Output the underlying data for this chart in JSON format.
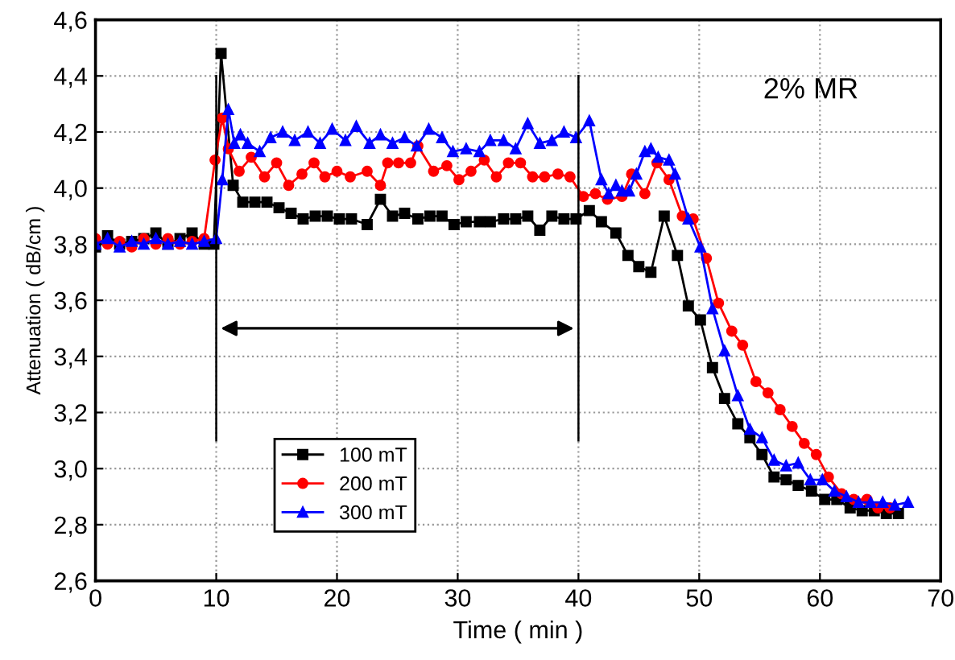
{
  "chart_data": {
    "type": "line",
    "xlabel": "Time ( min )",
    "ylabel": "Attenuation ( dB/cm )",
    "xlim": [
      0,
      70
    ],
    "xticks": [
      0,
      10,
      20,
      30,
      40,
      50,
      60,
      70
    ],
    "ylim": [
      2.6,
      4.6
    ],
    "yticks": [
      {
        "value": 2.6,
        "label": "2,6"
      },
      {
        "value": 2.8,
        "label": "2,8"
      },
      {
        "value": 3.0,
        "label": "3,0"
      },
      {
        "value": 3.2,
        "label": "3,2"
      },
      {
        "value": 3.4,
        "label": "3,4"
      },
      {
        "value": 3.6,
        "label": "3,6"
      },
      {
        "value": 3.8,
        "label": "3,8"
      },
      {
        "value": 4.0,
        "label": "4,0"
      },
      {
        "value": 4.2,
        "label": "4,2"
      },
      {
        "value": 4.4,
        "label": "4,4"
      },
      {
        "value": 4.6,
        "label": "4,6"
      }
    ],
    "grid": true,
    "legend": "bottom left",
    "line_style": "solid",
    "annotations": [
      "2% MR"
    ],
    "ref_lines": [
      {
        "axis": "x",
        "value": 10,
        "color": "#000000"
      },
      {
        "axis": "x",
        "value": 40,
        "color": "#000000"
      }
    ],
    "series": [
      {
        "name": "100 mT",
        "color": "#000000",
        "marker": "square",
        "x": [
          0,
          1,
          2,
          3,
          4,
          5,
          6,
          7,
          8,
          9,
          9.8,
          10.4,
          11.4,
          12.2,
          13.2,
          14.2,
          15.2,
          16.2,
          17.2,
          18.2,
          19.2,
          20.2,
          21.2,
          22.5,
          23.6,
          24.6,
          25.6,
          26.7,
          27.7,
          28.7,
          29.7,
          30.7,
          31.8,
          32.7,
          33.8,
          34.8,
          35.8,
          36.8,
          37.8,
          38.8,
          39.8,
          40.9,
          41.9,
          43.1,
          44.1,
          45.0,
          46.0,
          47.1,
          48.2,
          49.1,
          50.1,
          51.1,
          52.1,
          53.2,
          54.2,
          55.2,
          56.2,
          57.2,
          58.2,
          59.3,
          60.4,
          61.4,
          62.5,
          63.5,
          64.5,
          65.5,
          66.5
        ],
        "values": [
          3.79,
          3.83,
          3.8,
          3.81,
          3.82,
          3.84,
          3.8,
          3.82,
          3.84,
          3.8,
          3.8,
          4.48,
          4.01,
          3.95,
          3.95,
          3.95,
          3.93,
          3.91,
          3.89,
          3.9,
          3.9,
          3.89,
          3.89,
          3.87,
          3.96,
          3.9,
          3.91,
          3.89,
          3.9,
          3.9,
          3.87,
          3.88,
          3.88,
          3.88,
          3.89,
          3.89,
          3.9,
          3.85,
          3.9,
          3.89,
          3.89,
          3.92,
          3.88,
          3.84,
          3.76,
          3.72,
          3.7,
          3.9,
          3.76,
          3.58,
          3.53,
          3.36,
          3.25,
          3.16,
          3.11,
          3.05,
          2.97,
          2.96,
          2.94,
          2.92,
          2.89,
          2.89,
          2.86,
          2.85,
          2.85,
          2.84,
          2.84
        ]
      },
      {
        "name": "200 mT",
        "color": "#ff0000",
        "marker": "circle",
        "x": [
          0,
          1,
          2,
          3,
          4,
          5,
          6,
          7,
          8,
          9,
          9.9,
          10.5,
          11.0,
          11.9,
          12.9,
          14.0,
          15.0,
          16.0,
          17.1,
          18.1,
          19.0,
          20.0,
          21.1,
          22.5,
          23.6,
          24.2,
          25.1,
          26.1,
          26.7,
          28.0,
          29.1,
          30.1,
          31.1,
          32.2,
          33.2,
          34.2,
          35.2,
          36.2,
          37.2,
          38.3,
          39.3,
          40.4,
          41.4,
          42.4,
          43.6,
          44.4,
          45.5,
          46.5,
          47.5,
          48.6,
          49.5,
          50.6,
          51.6,
          52.7,
          53.6,
          54.7,
          55.7,
          56.7,
          57.7,
          58.7,
          59.7,
          60.7,
          61.8,
          62.8,
          63.9,
          64.8,
          65.8
        ],
        "values": [
          3.82,
          3.8,
          3.81,
          3.79,
          3.82,
          3.8,
          3.82,
          3.8,
          3.81,
          3.82,
          4.1,
          4.25,
          4.14,
          4.06,
          4.11,
          4.04,
          4.09,
          4.01,
          4.05,
          4.09,
          4.04,
          4.06,
          4.04,
          4.06,
          4.01,
          4.09,
          4.09,
          4.09,
          4.15,
          4.06,
          4.08,
          4.03,
          4.06,
          4.1,
          4.04,
          4.09,
          4.09,
          4.04,
          4.04,
          4.05,
          4.04,
          3.97,
          3.98,
          3.96,
          3.97,
          4.05,
          3.98,
          4.09,
          4.03,
          3.9,
          3.89,
          3.75,
          3.59,
          3.49,
          3.44,
          3.31,
          3.27,
          3.21,
          3.15,
          3.09,
          3.05,
          2.97,
          2.91,
          2.89,
          2.89,
          2.86,
          2.86
        ]
      },
      {
        "name": "300 mT",
        "color": "#0000ff",
        "marker": "triangle",
        "x": [
          0,
          1,
          2,
          3,
          4,
          5,
          6,
          7,
          8,
          9,
          10,
          10.5,
          11.0,
          11.5,
          12.0,
          12.6,
          13.6,
          14.5,
          15.5,
          16.5,
          17.6,
          18.6,
          19.6,
          20.7,
          21.6,
          22.7,
          23.6,
          24.6,
          25.6,
          26.6,
          27.6,
          28.7,
          29.6,
          30.7,
          31.8,
          32.7,
          33.8,
          34.8,
          35.8,
          36.8,
          37.8,
          38.8,
          39.8,
          40.9,
          41.9,
          42.5,
          43.1,
          43.6,
          44.2,
          44.8,
          45.5,
          46.0,
          46.6,
          47.5,
          48.0,
          49.1,
          50.1,
          51.1,
          52.1,
          53.2,
          54.2,
          55.2,
          56.2,
          57.2,
          58.2,
          59.2,
          60.2,
          61.2,
          62.2,
          63.2,
          64.2,
          65.2,
          66.2,
          67.3
        ],
        "values": [
          3.8,
          3.82,
          3.79,
          3.81,
          3.8,
          3.82,
          3.8,
          3.81,
          3.8,
          3.81,
          3.82,
          4.03,
          4.28,
          4.16,
          4.19,
          4.16,
          4.13,
          4.18,
          4.2,
          4.17,
          4.2,
          4.16,
          4.21,
          4.17,
          4.22,
          4.16,
          4.19,
          4.16,
          4.18,
          4.15,
          4.21,
          4.18,
          4.13,
          4.14,
          4.13,
          4.17,
          4.17,
          4.14,
          4.23,
          4.16,
          4.17,
          4.2,
          4.18,
          4.24,
          4.03,
          3.98,
          4.01,
          3.99,
          3.99,
          4.05,
          4.13,
          4.14,
          4.11,
          4.1,
          4.05,
          3.89,
          3.79,
          3.57,
          3.42,
          3.26,
          3.14,
          3.11,
          3.03,
          3.01,
          3.02,
          2.96,
          2.96,
          2.92,
          2.9,
          2.88,
          2.88,
          2.88,
          2.87,
          2.88
        ]
      }
    ]
  }
}
